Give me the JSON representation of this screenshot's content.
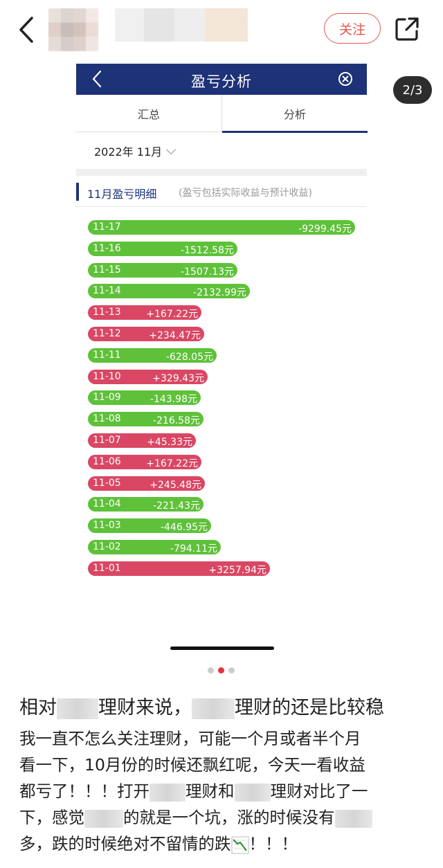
{
  "header": {
    "follow_label": "关注",
    "page_indicator": "2/3"
  },
  "app": {
    "title": "盈亏分析",
    "tabs": [
      {
        "label": "汇总",
        "active": false
      },
      {
        "label": "分析",
        "active": true
      }
    ],
    "month_selector": "2022年 11月",
    "section_title": "11月盈亏明细",
    "section_hint": "(盈亏包括实际收益与预计收益)",
    "colors": {
      "header_bg": "#1e3278",
      "loss": "#5fc13a",
      "gain": "#d94764"
    },
    "daily_pl": [
      {
        "date": "11-17",
        "value": "-9299.45元",
        "amount": -9299.45
      },
      {
        "date": "11-16",
        "value": "-1512.58元",
        "amount": -1512.58
      },
      {
        "date": "11-15",
        "value": "-1507.13元",
        "amount": -1507.13
      },
      {
        "date": "11-14",
        "value": "-2132.99元",
        "amount": -2132.99
      },
      {
        "date": "11-13",
        "value": "+167.22元",
        "amount": 167.22
      },
      {
        "date": "11-12",
        "value": "+234.47元",
        "amount": 234.47
      },
      {
        "date": "11-11",
        "value": "-628.05元",
        "amount": -628.05
      },
      {
        "date": "11-10",
        "value": "+329.43元",
        "amount": 329.43
      },
      {
        "date": "11-09",
        "value": "-143.98元",
        "amount": -143.98
      },
      {
        "date": "11-08",
        "value": "-216.58元",
        "amount": -216.58
      },
      {
        "date": "11-07",
        "value": "+45.33元",
        "amount": 45.33
      },
      {
        "date": "11-06",
        "value": "+167.22元",
        "amount": 167.22
      },
      {
        "date": "11-05",
        "value": "+245.48元",
        "amount": 245.48
      },
      {
        "date": "11-04",
        "value": "-221.43元",
        "amount": -221.43
      },
      {
        "date": "11-03",
        "value": "-446.95元",
        "amount": -446.95
      },
      {
        "date": "11-02",
        "value": "-794.11元",
        "amount": -794.11
      },
      {
        "date": "11-01",
        "value": "+3257.94元",
        "amount": 3257.94
      }
    ]
  },
  "post": {
    "title_parts": [
      "相对",
      "理财来说，",
      "理财的还是比较稳"
    ],
    "body_lines": [
      [
        "我一直不怎么关注理财，可能一个月或者半个月"
      ],
      [
        "看一下，10月份的时候还飘红呢，今天一看收益"
      ],
      [
        "都亏了！！！打开",
        "理财和",
        "理财对比了一"
      ],
      [
        "下，感觉",
        "的就是一个坑，涨的时候没有"
      ],
      [
        "多，跌的时候绝对不留情的跌",
        "！！！"
      ]
    ],
    "trend_icon": "chart-decreasing-icon"
  }
}
